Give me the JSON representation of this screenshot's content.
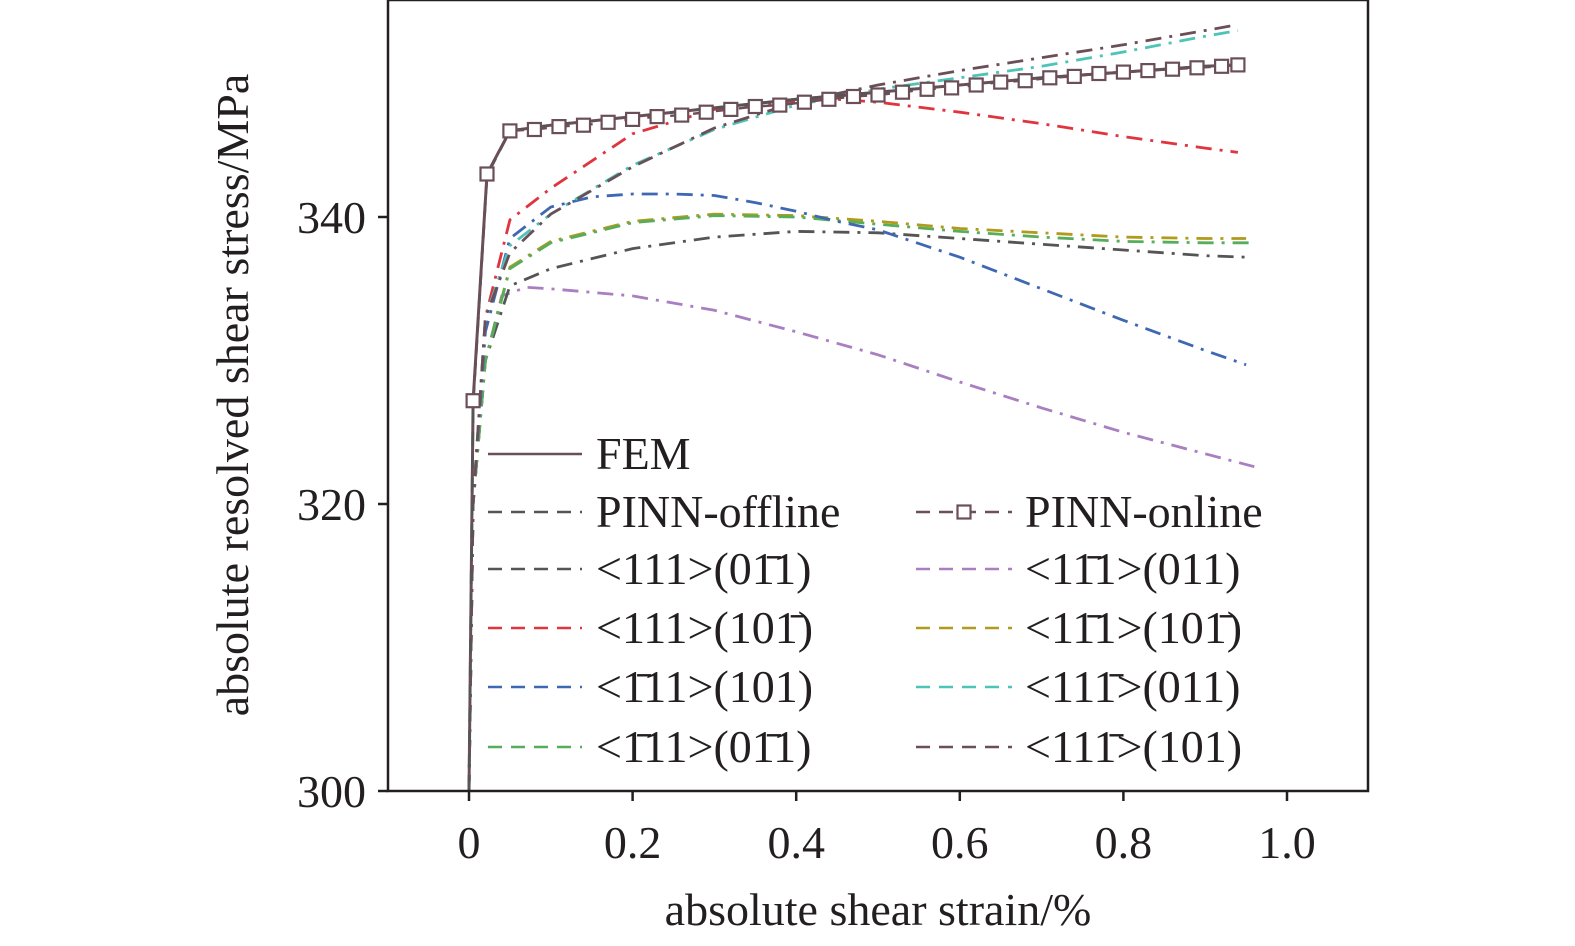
{
  "chart_data": {
    "type": "line",
    "title": "",
    "xlabel": "absolute shear strain/%",
    "ylabel": "absolute resolved shear stress/MPa",
    "xlim": [
      -0.1,
      1.1
    ],
    "ylim": [
      300,
      355
    ],
    "x_ticks": [
      0,
      0.2,
      0.4,
      0.6,
      0.8,
      1.0
    ],
    "x_tick_labels": [
      "0",
      "0.2",
      "0.4",
      "0.6",
      "0.8",
      "1.0"
    ],
    "y_ticks": [
      300,
      320,
      340
    ],
    "y_tick_labels": [
      "300",
      "320",
      "340"
    ],
    "grid": false,
    "legend_position": "lower-left, two columns",
    "series": [
      {
        "name": "FEM",
        "color": "#6b4f58",
        "style": "solid",
        "x": [
          0,
          0.005,
          0.022,
          0.05,
          0.1,
          0.2,
          0.3,
          0.4,
          0.5,
          0.6,
          0.7,
          0.8,
          0.9,
          0.94
        ],
        "y": [
          300,
          327.2,
          343.0,
          346.0,
          346.4,
          347.0,
          347.6,
          348.2,
          348.7,
          349.2,
          349.7,
          350.1,
          350.5,
          350.6
        ]
      },
      {
        "name": "PINN-offline",
        "color": "#555555",
        "style": "dashed",
        "x": [
          0,
          0.005,
          0.022,
          0.05,
          0.1,
          0.2,
          0.3,
          0.4,
          0.5,
          0.6,
          0.7,
          0.8,
          0.9,
          0.94
        ],
        "y": [
          300,
          327.0,
          342.9,
          346.0,
          346.4,
          347.0,
          347.6,
          348.2,
          348.7,
          349.2,
          349.7,
          350.1,
          350.5,
          350.6
        ]
      },
      {
        "name": "PINN-online",
        "color": "#6b4f58",
        "style": "dashed",
        "marker": "square",
        "x": [
          0.005,
          0.022,
          0.05,
          0.08,
          0.11,
          0.14,
          0.17,
          0.2,
          0.23,
          0.26,
          0.29,
          0.32,
          0.35,
          0.38,
          0.41,
          0.44,
          0.47,
          0.5,
          0.53,
          0.56,
          0.59,
          0.62,
          0.65,
          0.68,
          0.71,
          0.74,
          0.77,
          0.8,
          0.83,
          0.86,
          0.89,
          0.92,
          0.94
        ],
        "y": [
          327.2,
          343.0,
          346.0,
          346.1,
          346.3,
          346.4,
          346.6,
          346.8,
          347.0,
          347.1,
          347.3,
          347.5,
          347.7,
          347.8,
          348.0,
          348.2,
          348.4,
          348.5,
          348.7,
          348.9,
          349.0,
          349.2,
          349.4,
          349.5,
          349.7,
          349.8,
          350.0,
          350.1,
          350.2,
          350.3,
          350.4,
          350.5,
          350.6
        ]
      },
      {
        "name": "<111>(01̄1)",
        "color": "#555555",
        "style": "dashdot",
        "x": [
          0,
          0.005,
          0.02,
          0.05,
          0.1,
          0.2,
          0.3,
          0.4,
          0.5,
          0.6,
          0.7,
          0.8,
          0.9,
          0.95
        ],
        "y": [
          300,
          320,
          330,
          335.2,
          336.4,
          337.8,
          338.6,
          339.0,
          338.9,
          338.5,
          338.1,
          337.7,
          337.3,
          337.2
        ]
      },
      {
        "name": "<11̄1>(011)",
        "color": "#a97fc0",
        "style": "dashdot",
        "x": [
          0,
          0.005,
          0.02,
          0.04,
          0.07,
          0.1,
          0.2,
          0.3,
          0.4,
          0.5,
          0.6,
          0.7,
          0.8,
          0.9,
          0.96
        ],
        "y": [
          300,
          320,
          330,
          334.5,
          335.1,
          335.0,
          334.5,
          333.5,
          332.0,
          330.4,
          328.5,
          326.7,
          325.0,
          323.5,
          322.6
        ]
      },
      {
        "name": "<111>(101̄)",
        "color": "#e0343f",
        "style": "dashdot",
        "x": [
          0,
          0.005,
          0.02,
          0.05,
          0.1,
          0.2,
          0.3,
          0.4,
          0.45,
          0.5,
          0.6,
          0.7,
          0.8,
          0.9,
          0.94
        ],
        "y": [
          300,
          320,
          333,
          339.8,
          342.0,
          345.8,
          347.5,
          348.1,
          348.2,
          348.0,
          347.3,
          346.5,
          345.6,
          344.8,
          344.5
        ]
      },
      {
        "name": "<11̄1>(101̄)",
        "color": "#b19a1c",
        "style": "dashdot",
        "x": [
          0,
          0.005,
          0.02,
          0.05,
          0.1,
          0.2,
          0.3,
          0.4,
          0.5,
          0.6,
          0.7,
          0.8,
          0.9,
          0.95
        ],
        "y": [
          300,
          320,
          330,
          336.5,
          338.3,
          339.7,
          340.2,
          340.1,
          339.7,
          339.2,
          338.9,
          338.6,
          338.5,
          338.5
        ]
      },
      {
        "name": "<1̄11>(101)",
        "color": "#3f68b3",
        "style": "dashdot",
        "x": [
          0,
          0.005,
          0.02,
          0.05,
          0.1,
          0.15,
          0.2,
          0.25,
          0.3,
          0.35,
          0.4,
          0.45,
          0.5,
          0.6,
          0.7,
          0.8,
          0.9,
          0.95
        ],
        "y": [
          300,
          320,
          332,
          338.5,
          340.7,
          341.4,
          341.6,
          341.6,
          341.5,
          341.0,
          340.4,
          339.7,
          339.1,
          337.2,
          335.0,
          332.8,
          330.7,
          329.7
        ]
      },
      {
        "name": "<111̄>(011)",
        "color": "#4ec3b8",
        "style": "dashdot",
        "x": [
          0,
          0.005,
          0.02,
          0.05,
          0.1,
          0.2,
          0.3,
          0.4,
          0.5,
          0.6,
          0.7,
          0.8,
          0.9,
          0.94
        ],
        "y": [
          300,
          320,
          333,
          338.0,
          340.2,
          343.6,
          346.1,
          347.8,
          348.9,
          349.7,
          350.5,
          351.5,
          352.6,
          353.0
        ]
      },
      {
        "name": "<1̄11>(01̄1)",
        "color": "#56ad5a",
        "style": "dashdot",
        "x": [
          0,
          0.005,
          0.02,
          0.05,
          0.1,
          0.2,
          0.3,
          0.4,
          0.5,
          0.6,
          0.7,
          0.8,
          0.9,
          0.96
        ],
        "y": [
          300,
          320,
          330,
          336.4,
          338.2,
          339.6,
          340.1,
          340.0,
          339.5,
          339.0,
          338.6,
          338.3,
          338.2,
          338.2
        ]
      },
      {
        "name": "<111̄>(101)",
        "color": "#6b4f58",
        "style": "dashdot",
        "x": [
          0,
          0.005,
          0.02,
          0.05,
          0.1,
          0.2,
          0.3,
          0.4,
          0.5,
          0.6,
          0.7,
          0.8,
          0.9,
          0.94
        ],
        "y": [
          300,
          320,
          333,
          337.5,
          340.2,
          343.5,
          346.2,
          348.0,
          349.2,
          350.2,
          351.1,
          352.0,
          353.0,
          353.4
        ]
      }
    ]
  }
}
